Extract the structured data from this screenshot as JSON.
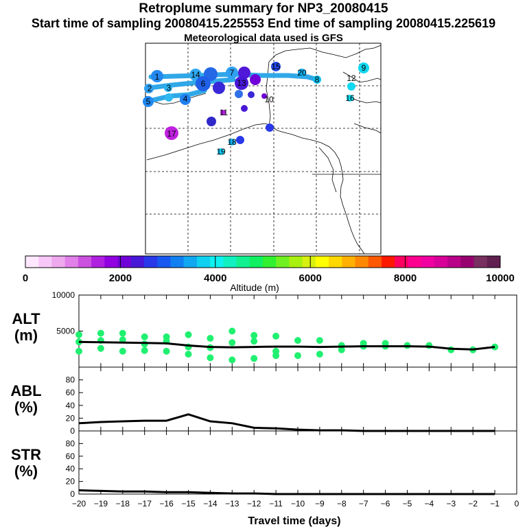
{
  "header": {
    "title": "Retroplume summary for NP3_20080415",
    "subtitle": "Start time of sampling 20080415.225553     End time of sampling 20080415.225619",
    "met_line": "Meteorological data used is GFS"
  },
  "map": {
    "numbered_markers": [
      "1",
      "2",
      "3",
      "4",
      "5",
      "6",
      "7",
      "8",
      "9",
      "10",
      "11",
      "12",
      "13",
      "14",
      "15",
      "16",
      "17",
      "18",
      "19",
      "20"
    ]
  },
  "colorbar": {
    "xlabel": "Altitude (m)",
    "tick_labels": [
      "0",
      "2000",
      "4000",
      "6000",
      "8000",
      "10000"
    ],
    "colors": [
      "#ffe8ff",
      "#f7c8f7",
      "#eea8ee",
      "#e080e8",
      "#cc50e0",
      "#b020e0",
      "#9000e0",
      "#7000d8",
      "#4818d8",
      "#2838e8",
      "#1858f0",
      "#1080f0",
      "#10a8f0",
      "#10d0f0",
      "#10f0f0",
      "#10f0c0",
      "#10f090",
      "#10f060",
      "#30f030",
      "#70f020",
      "#a8f010",
      "#d8f010",
      "#ffff00",
      "#ffd800",
      "#ffb000",
      "#ff8800",
      "#ff5800",
      "#ff1800",
      "#ff0060",
      "#ff0090",
      "#f000a0",
      "#d80098",
      "#b80088",
      "#980070",
      "#783060",
      "#602050"
    ]
  },
  "chart_data": [
    {
      "type": "line",
      "panel": "ALT",
      "ylabel": "ALT\n(m)",
      "ylabel_lines": [
        "ALT",
        "(m)"
      ],
      "x": [
        -20,
        -19,
        -18,
        -17,
        -16,
        -15,
        -14,
        -13,
        -12,
        -11,
        -10,
        -9,
        -8,
        -7,
        -6,
        -5,
        -4,
        -3,
        -2,
        -1
      ],
      "median": [
        3500,
        3450,
        3400,
        3350,
        3300,
        3000,
        2800,
        2750,
        2800,
        2850,
        2850,
        2800,
        2850,
        2900,
        2900,
        2900,
        2850,
        2550,
        2450,
        2800
      ],
      "scatter_points": [
        {
          "x": -20,
          "y": 4500
        },
        {
          "x": -20,
          "y": 3500
        },
        {
          "x": -20,
          "y": 2200
        },
        {
          "x": -19,
          "y": 4700
        },
        {
          "x": -19,
          "y": 3700
        },
        {
          "x": -19,
          "y": 2600
        },
        {
          "x": -18,
          "y": 4700
        },
        {
          "x": -18,
          "y": 3800
        },
        {
          "x": -18,
          "y": 2200
        },
        {
          "x": -17,
          "y": 4200
        },
        {
          "x": -17,
          "y": 3200
        },
        {
          "x": -17,
          "y": 2300
        },
        {
          "x": -16,
          "y": 4200
        },
        {
          "x": -16,
          "y": 3600
        },
        {
          "x": -16,
          "y": 2200
        },
        {
          "x": -15,
          "y": 4500
        },
        {
          "x": -15,
          "y": 2800
        },
        {
          "x": -15,
          "y": 1800
        },
        {
          "x": -14,
          "y": 4000
        },
        {
          "x": -14,
          "y": 2700
        },
        {
          "x": -14,
          "y": 1300
        },
        {
          "x": -13,
          "y": 5000
        },
        {
          "x": -13,
          "y": 3400
        },
        {
          "x": -13,
          "y": 1000
        },
        {
          "x": -12,
          "y": 4400
        },
        {
          "x": -12,
          "y": 3600
        },
        {
          "x": -12,
          "y": 1200
        },
        {
          "x": -11,
          "y": 4300
        },
        {
          "x": -11,
          "y": 2200
        },
        {
          "x": -11,
          "y": 1600
        },
        {
          "x": -10,
          "y": 3700
        },
        {
          "x": -10,
          "y": 1600
        },
        {
          "x": -9,
          "y": 3700
        },
        {
          "x": -9,
          "y": 1800
        },
        {
          "x": -8,
          "y": 3000
        },
        {
          "x": -8,
          "y": 2400
        },
        {
          "x": -7,
          "y": 3300
        },
        {
          "x": -7,
          "y": 2900
        },
        {
          "x": -6,
          "y": 3300
        },
        {
          "x": -6,
          "y": 2900
        },
        {
          "x": -5,
          "y": 3000
        },
        {
          "x": -4,
          "y": 3000
        },
        {
          "x": -3,
          "y": 2400
        },
        {
          "x": -2,
          "y": 2400
        },
        {
          "x": -1,
          "y": 2800
        }
      ],
      "ylim": [
        0,
        10000
      ],
      "yticks": [
        0,
        5000,
        10000
      ],
      "ytick_labels": [
        "",
        "5000",
        "10000"
      ]
    },
    {
      "type": "line",
      "panel": "ABL",
      "ylabel": "ABL\n(%)",
      "ylabel_lines": [
        "ABL",
        "(%)"
      ],
      "x": [
        -20,
        -19,
        -18,
        -17,
        -16,
        -15,
        -14,
        -13,
        -12,
        -11,
        -10,
        -9,
        -8,
        -7,
        -6,
        -5,
        -4,
        -3,
        -2,
        -1
      ],
      "values": [
        12,
        14,
        15,
        16,
        16,
        26,
        15,
        12,
        5,
        4,
        2,
        1,
        1,
        0,
        0,
        0,
        0,
        0,
        0,
        0
      ],
      "ylim": [
        0,
        100
      ],
      "yticks": [
        0,
        20,
        40,
        60,
        80
      ],
      "ytick_labels": [
        "0",
        "20",
        "40",
        "60",
        "80"
      ]
    },
    {
      "type": "line",
      "panel": "STR",
      "ylabel": "STR\n(%)",
      "ylabel_lines": [
        "STR",
        "(%)"
      ],
      "x": [
        -20,
        -19,
        -18,
        -17,
        -16,
        -15,
        -14,
        -13,
        -12,
        -11,
        -10,
        -9,
        -8,
        -7,
        -6,
        -5,
        -4,
        -3,
        -2,
        -1
      ],
      "values": [
        6,
        5,
        4,
        4,
        3,
        3,
        2,
        1,
        1,
        0,
        0,
        0,
        0,
        0,
        0,
        0,
        0,
        0,
        0,
        0
      ],
      "ylim": [
        0,
        100
      ],
      "yticks": [
        0,
        20,
        40,
        60,
        80
      ],
      "ytick_labels": [
        "0",
        "20",
        "40",
        "60",
        "80"
      ],
      "xlabel": "Travel time (days)",
      "xtick_values": [
        -20,
        -19,
        -18,
        -17,
        -16,
        -15,
        -14,
        -13,
        -12,
        -11,
        -10,
        -9,
        -8,
        -7,
        -6,
        -5,
        -4,
        -3,
        -2,
        -1,
        0
      ],
      "xtick_labels": [
        "−20",
        "−19",
        "−18",
        "−17",
        "−16",
        "−15",
        "−14",
        "−13",
        "−12",
        "−11",
        "−10",
        "−9",
        "−8",
        "−7",
        "−6",
        "−5",
        "−4",
        "−3",
        "−2",
        "−1",
        "0"
      ]
    }
  ]
}
